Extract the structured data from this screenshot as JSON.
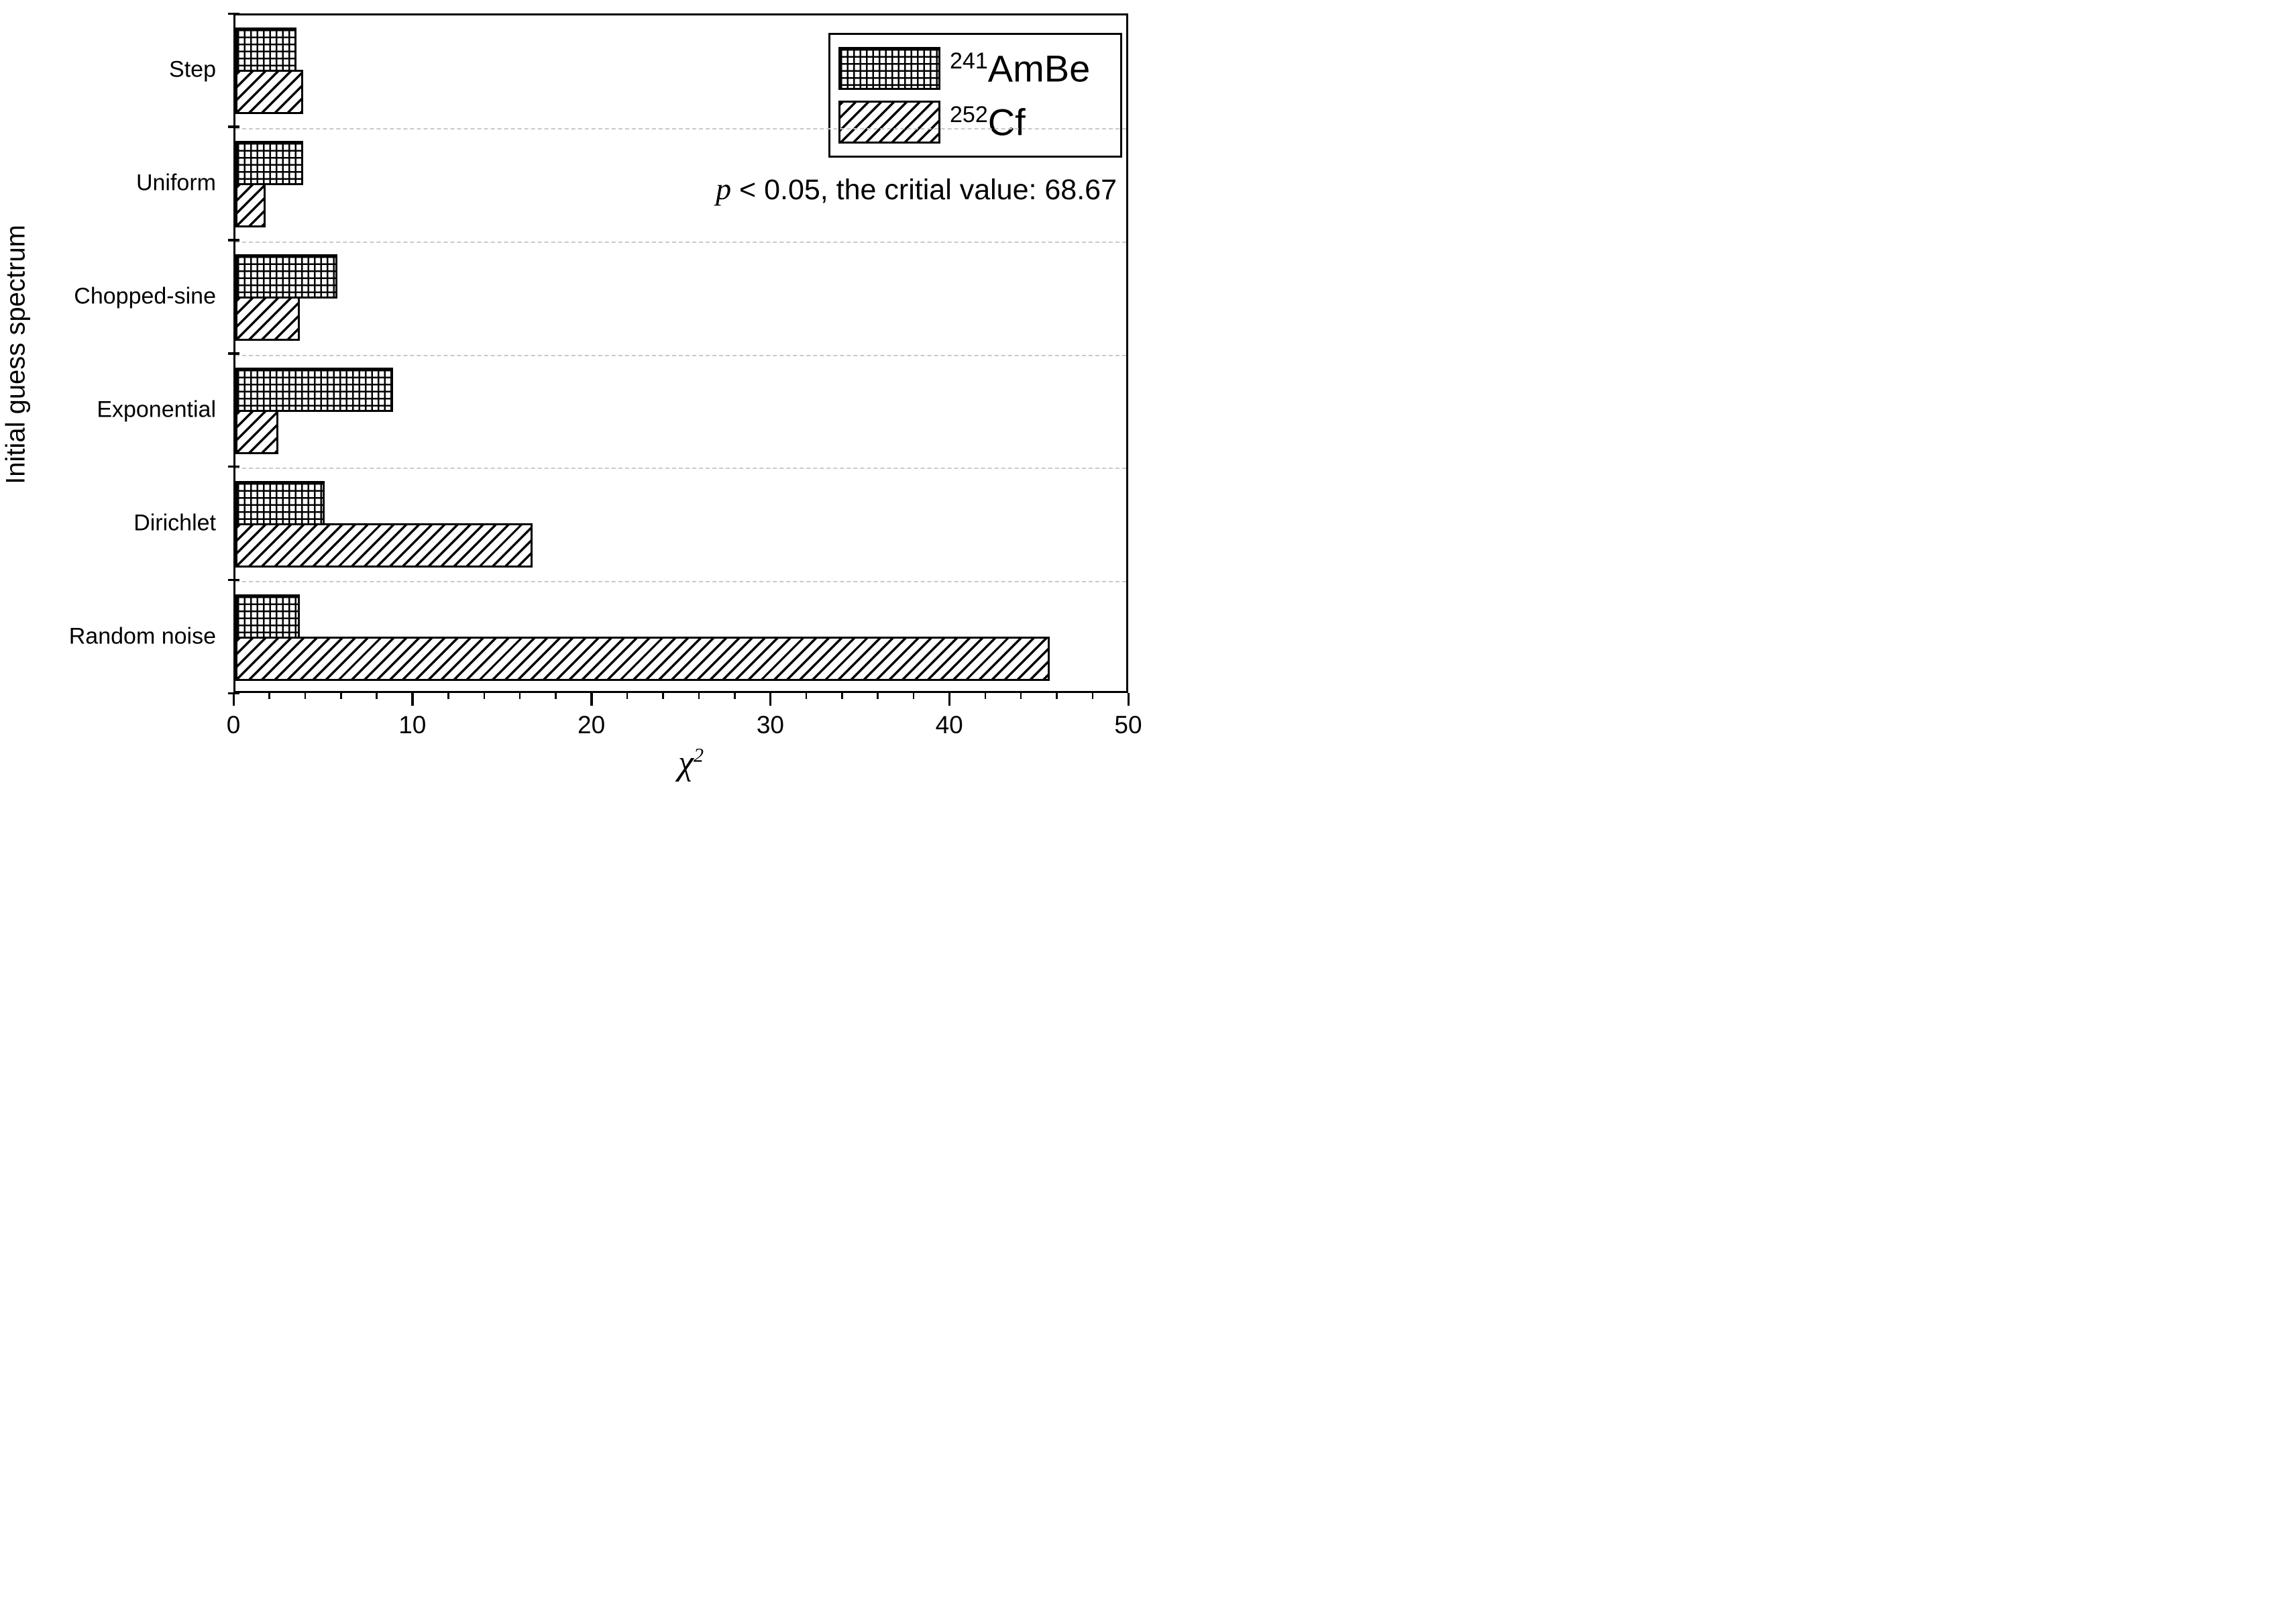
{
  "figure": {
    "y_axis_title": "Initial guess spectrum",
    "x_axis_title_base": "χ",
    "x_axis_title_sup": "2",
    "annotation": {
      "italic": "p",
      "rest": " < 0.05, the critial value: 68.67"
    },
    "legend": [
      {
        "sup": "241",
        "label": "AmBe",
        "pattern": "crosshatch-grid"
      },
      {
        "sup": "252",
        "label": "Cf",
        "pattern": "diagonal-hatch"
      }
    ]
  },
  "chart_data": {
    "type": "bar",
    "orientation": "horizontal",
    "title": "",
    "xlabel": "χ²",
    "ylabel": "Initial guess spectrum",
    "xlim": [
      0,
      50
    ],
    "x_major_ticks": [
      0,
      10,
      20,
      30,
      40,
      50
    ],
    "x_minor_tick_step": 2,
    "grid": "dashed horizontal separators between categories",
    "legend_position": "top-right",
    "annotation": "p < 0.05, the critial value: 68.67",
    "categories": [
      "Step",
      "Uniform",
      "Chopped-sine",
      "Exponential",
      "Dirichlet",
      "Random noise"
    ],
    "series": [
      {
        "name": "241AmBe",
        "isotope_sup": "241",
        "label": "AmBe",
        "pattern": "crosshatch-grid",
        "values": [
          3.4,
          3.8,
          5.7,
          8.8,
          5.0,
          3.6
        ]
      },
      {
        "name": "252Cf",
        "isotope_sup": "252",
        "label": "Cf",
        "pattern": "diagonal-hatch",
        "values": [
          3.8,
          1.7,
          3.6,
          2.4,
          16.6,
          45.5
        ]
      }
    ],
    "colors": {
      "foreground": "#000000",
      "background": "#ffffff",
      "gridline": "#c9c9c9"
    }
  }
}
